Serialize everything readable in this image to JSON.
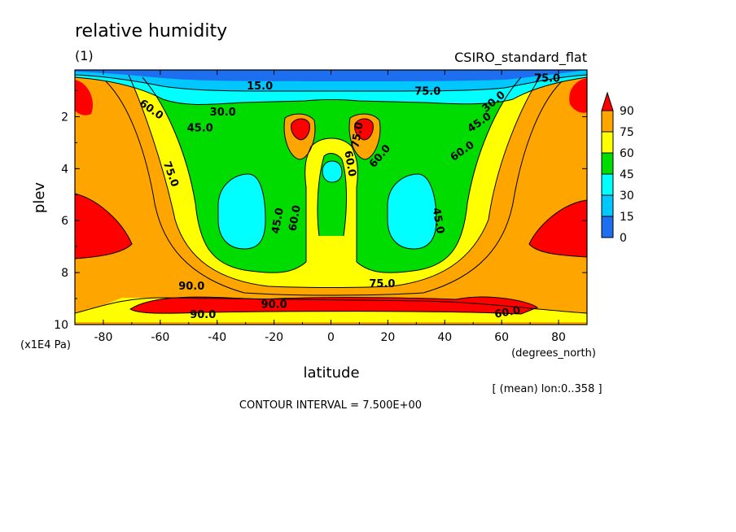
{
  "chart_data": {
    "type": "heatmap",
    "title": "relative humidity",
    "subtitle": "(1)",
    "source_label": "CSIRO_standard_flat",
    "xlabel": "latitude",
    "x_units": "(degrees_north)",
    "ylabel": "plev",
    "y_units": "(x1E4 Pa)",
    "xlim": [
      -90,
      90
    ],
    "ylim": [
      10,
      0.2
    ],
    "x_ticks": [
      "-80",
      "-60",
      "-40",
      "-20",
      "0",
      "20",
      "40",
      "60",
      "80"
    ],
    "y_ticks": [
      "2",
      "4",
      "6",
      "8",
      "10"
    ],
    "averaging_note": "[ (mean) lon:0..358 ]",
    "contour_note": "CONTOUR INTERVAL = 7.500E+00",
    "colorbar": {
      "levels": [
        "0",
        "15",
        "30",
        "45",
        "60",
        "75",
        "90"
      ],
      "colors": [
        "#1e6ef0",
        "#00c8ff",
        "#00ffff",
        "#00dc00",
        "#ffff00",
        "#ffa500",
        "#ff0000"
      ]
    },
    "contour_labels": [
      "15.0",
      "30.0",
      "45.0",
      "60.0",
      "75.0",
      "90.0",
      "45.0",
      "60.0",
      "75.0",
      "60.0",
      "60.0",
      "45.0",
      "75.0",
      "60.0",
      "45.0",
      "30.0",
      "75.0",
      "75.0",
      "90.0",
      "90.0",
      "60.0",
      "75.0"
    ]
  }
}
